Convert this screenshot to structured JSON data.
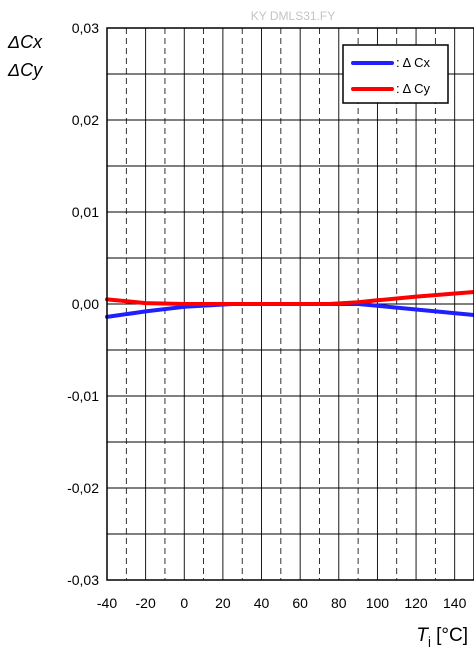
{
  "chart_data": {
    "type": "line",
    "watermark": "KY DMLS31.FY",
    "ylabel": "ΔCx",
    "ylabel2": "ΔCy",
    "xlabel": "T",
    "xlabel_sub": "j",
    "xlabel_unit": " [°C]",
    "xlim": [
      -40,
      150
    ],
    "ylim": [
      -0.03,
      0.03
    ],
    "x_ticks": [
      -40,
      -20,
      0,
      20,
      40,
      60,
      80,
      100,
      120,
      140
    ],
    "x_tick_labels": [
      "-40",
      "-20",
      "0",
      "20",
      "40",
      "60",
      "80",
      "100",
      "120",
      "140"
    ],
    "y_ticks": [
      -0.03,
      -0.02,
      -0.01,
      0.0,
      0.01,
      0.02,
      0.03
    ],
    "y_tick_labels": [
      "-0,03",
      "-0,02",
      "-0,01",
      "0,00",
      "0,01",
      "0,02",
      "0,03"
    ],
    "grid": true,
    "legend_position": "top-right",
    "series": [
      {
        "name": ": Δ Cx",
        "color": "#1f1fff",
        "x": [
          -40,
          -20,
          0,
          25,
          50,
          75,
          90,
          100,
          120,
          150
        ],
        "y": [
          -0.0014,
          -0.0008,
          -0.0003,
          0.0,
          0.0,
          0.0,
          0.0,
          -0.0002,
          -0.0006,
          -0.0012
        ]
      },
      {
        "name": ": Δ Cy",
        "color": "#ff0000",
        "x": [
          -40,
          -20,
          0,
          25,
          50,
          75,
          90,
          100,
          120,
          150
        ],
        "y": [
          0.0005,
          0.0001,
          0.0,
          0.0,
          0.0,
          0.0,
          0.0002,
          0.0004,
          0.0008,
          0.0013
        ]
      }
    ]
  }
}
